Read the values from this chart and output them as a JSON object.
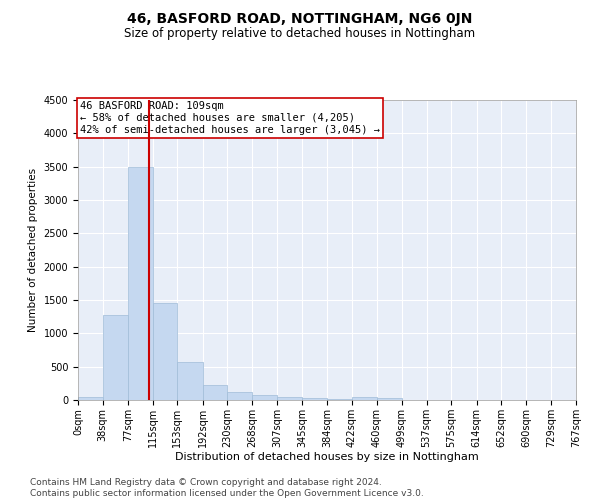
{
  "title": "46, BASFORD ROAD, NOTTINGHAM, NG6 0JN",
  "subtitle": "Size of property relative to detached houses in Nottingham",
  "xlabel": "Distribution of detached houses by size in Nottingham",
  "ylabel": "Number of detached properties",
  "bar_color": "#c5d8f0",
  "bar_edge_color": "#a0bcd8",
  "background_color": "#e8eef8",
  "grid_color": "#ffffff",
  "vline_x": 109,
  "vline_color": "#cc0000",
  "annotation_box_color": "#cc0000",
  "annotation_text": "46 BASFORD ROAD: 109sqm\n← 58% of detached houses are smaller (4,205)\n42% of semi-detached houses are larger (3,045) →",
  "bin_edges": [
    0,
    38,
    77,
    115,
    153,
    192,
    230,
    268,
    307,
    345,
    384,
    422,
    460,
    499,
    537,
    575,
    614,
    652,
    690,
    729,
    767
  ],
  "bin_counts": [
    50,
    1275,
    3500,
    1450,
    575,
    225,
    125,
    75,
    50,
    35,
    15,
    50,
    25,
    0,
    0,
    0,
    0,
    0,
    0,
    0
  ],
  "ylim": [
    0,
    4500
  ],
  "yticks": [
    0,
    500,
    1000,
    1500,
    2000,
    2500,
    3000,
    3500,
    4000,
    4500
  ],
  "footer_text": "Contains HM Land Registry data © Crown copyright and database right 2024.\nContains public sector information licensed under the Open Government Licence v3.0.",
  "title_fontsize": 10,
  "subtitle_fontsize": 8.5,
  "xlabel_fontsize": 8,
  "ylabel_fontsize": 7.5,
  "tick_fontsize": 7,
  "annotation_fontsize": 7.5,
  "footer_fontsize": 6.5
}
